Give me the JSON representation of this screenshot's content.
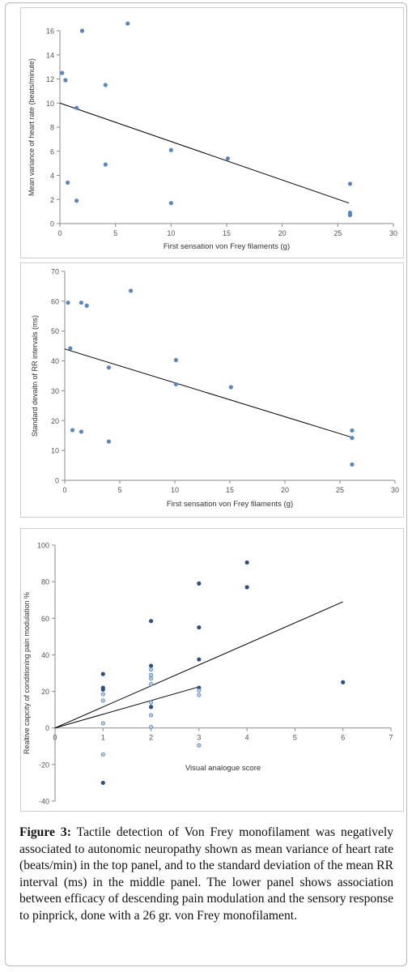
{
  "caption": {
    "label": "Figure 3:",
    "text": "Tactile detection of Von Frey monofilament was negatively associated to autonomic neuropathy shown as mean variance of heart rate (beats/min) in the top panel, and to the standard deviation of the mean RR interval (ms) in the middle panel. The lower panel shows association between efficacy of descending pain modulation and the sensory response to pinprick, done with a 26 gr. von Frey monofilament."
  },
  "colors": {
    "point": "#5b86bd",
    "point_dark": "#2f4f86",
    "line": "#000000",
    "axis": "#8a8a8a",
    "text": "#555555"
  },
  "chart_data": [
    {
      "type": "scatter",
      "xlabel": "First sensation von Frey filaments (g)",
      "ylabel": "Mean variance of heart rate (beats/minute)",
      "xlim": [
        0,
        30
      ],
      "ylim": [
        0,
        16
      ],
      "xticks": [
        0,
        5,
        10,
        15,
        20,
        25,
        30
      ],
      "yticks": [
        0,
        2,
        4,
        6,
        8,
        10,
        12,
        14,
        16
      ],
      "grid": false,
      "points": [
        {
          "x": 0.2,
          "y": 12.5
        },
        {
          "x": 0.5,
          "y": 11.9
        },
        {
          "x": 0.7,
          "y": 3.4
        },
        {
          "x": 1.5,
          "y": 9.6
        },
        {
          "x": 1.5,
          "y": 1.9
        },
        {
          "x": 2.0,
          "y": 16.0
        },
        {
          "x": 4.1,
          "y": 11.5
        },
        {
          "x": 4.1,
          "y": 4.9
        },
        {
          "x": 6.1,
          "y": 16.6
        },
        {
          "x": 10.0,
          "y": 6.1
        },
        {
          "x": 10.0,
          "y": 1.7
        },
        {
          "x": 15.1,
          "y": 5.4
        },
        {
          "x": 26.1,
          "y": 3.3
        },
        {
          "x": 26.1,
          "y": 0.9
        },
        {
          "x": 26.1,
          "y": 0.7
        }
      ],
      "trendlines": [
        {
          "x": [
            0,
            26
          ],
          "y": [
            10.0,
            1.7
          ]
        }
      ]
    },
    {
      "type": "scatter",
      "xlabel": "First sensation von Frey filaments (g)",
      "ylabel": "Standard devaitn of RR intervals (ms)",
      "xlim": [
        0,
        30
      ],
      "ylim": [
        0,
        70
      ],
      "xticks": [
        0,
        5,
        10,
        15,
        20,
        25,
        30
      ],
      "yticks": [
        0,
        10,
        20,
        30,
        40,
        50,
        60,
        70
      ],
      "grid": false,
      "points": [
        {
          "x": 0.3,
          "y": 59.5
        },
        {
          "x": 0.5,
          "y": 44.2
        },
        {
          "x": 0.7,
          "y": 16.8
        },
        {
          "x": 1.5,
          "y": 59.5
        },
        {
          "x": 1.5,
          "y": 16.3
        },
        {
          "x": 2.0,
          "y": 58.5
        },
        {
          "x": 4.0,
          "y": 37.8
        },
        {
          "x": 4.0,
          "y": 13.0
        },
        {
          "x": 6.0,
          "y": 63.5
        },
        {
          "x": 10.1,
          "y": 40.3
        },
        {
          "x": 10.1,
          "y": 32.2
        },
        {
          "x": 15.1,
          "y": 31.2
        },
        {
          "x": 26.1,
          "y": 16.7
        },
        {
          "x": 26.1,
          "y": 14.2
        },
        {
          "x": 26.1,
          "y": 5.3
        }
      ],
      "trendlines": [
        {
          "x": [
            0,
            26
          ],
          "y": [
            44.0,
            14.5
          ]
        }
      ]
    },
    {
      "type": "scatter",
      "xlabel": "Visual analogue score",
      "ylabel": "Realtive capcity of conditioning pain modulation %",
      "xlim": [
        0,
        7
      ],
      "ylim": [
        -40,
        100
      ],
      "xticks": [
        0,
        1,
        2,
        3,
        4,
        5,
        6,
        7
      ],
      "yticks": [
        -40,
        -20,
        0,
        20,
        40,
        60,
        80,
        100
      ],
      "grid": false,
      "series": [
        {
          "style": "dark",
          "points": [
            {
              "x": 1,
              "y": 29.5
            },
            {
              "x": 1,
              "y": 22.0
            },
            {
              "x": 1,
              "y": 21.0
            },
            {
              "x": 1,
              "y": -30.0
            },
            {
              "x": 2,
              "y": 58.5
            },
            {
              "x": 2,
              "y": 34.0
            },
            {
              "x": 2,
              "y": 11.5
            },
            {
              "x": 3,
              "y": 79.0
            },
            {
              "x": 3,
              "y": 55.0
            },
            {
              "x": 3,
              "y": 37.5
            },
            {
              "x": 3,
              "y": 22.0
            },
            {
              "x": 4,
              "y": 90.5
            },
            {
              "x": 4,
              "y": 77.0
            },
            {
              "x": 6,
              "y": 25.0
            }
          ]
        },
        {
          "style": "light",
          "points": [
            {
              "x": 1,
              "y": 18.5
            },
            {
              "x": 1,
              "y": 15.0
            },
            {
              "x": 1,
              "y": 2.5
            },
            {
              "x": 1,
              "y": -14.5
            },
            {
              "x": 2,
              "y": 32.0
            },
            {
              "x": 2,
              "y": 29.0
            },
            {
              "x": 2,
              "y": 27.0
            },
            {
              "x": 2,
              "y": 24.0
            },
            {
              "x": 2,
              "y": 14.0
            },
            {
              "x": 2,
              "y": 7.0
            },
            {
              "x": 2,
              "y": 0.5
            },
            {
              "x": 3,
              "y": 20.5
            },
            {
              "x": 3,
              "y": 18.0
            },
            {
              "x": 3,
              "y": -9.5
            }
          ]
        }
      ],
      "trendlines": [
        {
          "x": [
            0,
            6
          ],
          "y": [
            0,
            69
          ]
        },
        {
          "x": [
            0,
            3
          ],
          "y": [
            0,
            22.5
          ]
        }
      ]
    }
  ]
}
